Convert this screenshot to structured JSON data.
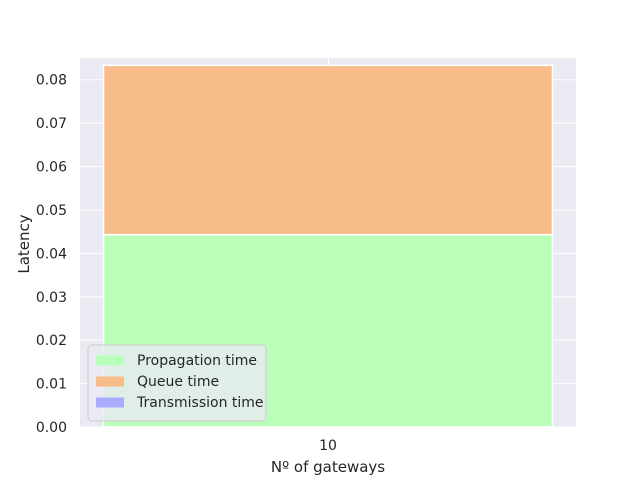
{
  "chart_data": {
    "type": "bar",
    "stacked": true,
    "categories": [
      "10"
    ],
    "series": [
      {
        "name": "Propagation time",
        "values": [
          0.0443
        ],
        "color": "#b9ffb9"
      },
      {
        "name": "Queue time",
        "values": [
          0.039
        ],
        "color": "#f8bc88"
      },
      {
        "name": "Transmission time",
        "values": [
          0.0
        ],
        "color": "#aaaaff"
      }
    ],
    "xlabel": "Nº of gateways",
    "ylabel": "Latency",
    "ylim": [
      0,
      0.085
    ],
    "yticks": [
      0.0,
      0.01,
      0.02,
      0.03,
      0.04,
      0.05,
      0.06,
      0.07,
      0.08
    ],
    "ytick_labels": [
      "0.00",
      "0.01",
      "0.02",
      "0.03",
      "0.04",
      "0.05",
      "0.06",
      "0.07",
      "0.08"
    ],
    "grid": true,
    "legend_position": "lower-left",
    "colors": {
      "plot_background": "#eaeaf2",
      "grid": "#ffffff"
    }
  }
}
